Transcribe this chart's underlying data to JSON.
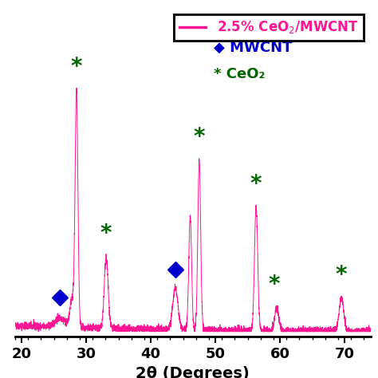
{
  "xlim": [
    19,
    74
  ],
  "xlabel": "2θ (Degrees)",
  "line_color": "#FF1493",
  "background_color": "#ffffff",
  "mwcnt_color": "#0000CC",
  "ceo2_color": "#006400",
  "ceo2_peaks": [
    28.5,
    33.1,
    47.5,
    56.3,
    59.1,
    69.5
  ],
  "mwcnt_peaks": [
    25.9,
    43.8
  ],
  "xticks": [
    20,
    30,
    40,
    50,
    60,
    70
  ],
  "noise_seed": 42,
  "noise_std": 0.008,
  "baseline": 0.02
}
